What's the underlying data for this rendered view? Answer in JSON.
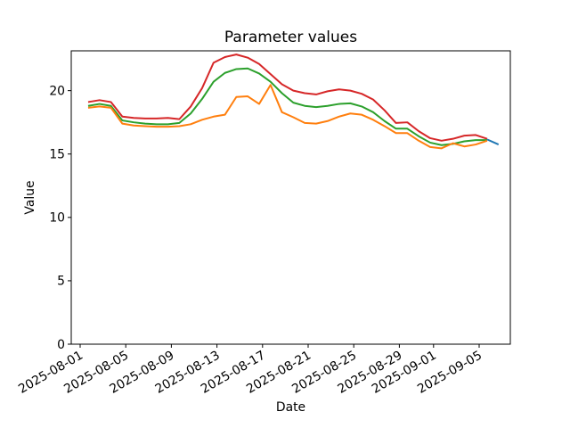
{
  "chart_data": {
    "type": "line",
    "title": "Parameter values",
    "xlabel": "Date",
    "ylabel": "Value",
    "ylim": [
      0,
      23.14
    ],
    "yticks": [
      0,
      5,
      10,
      15,
      20
    ],
    "xtick_labels": [
      "2025-08-01",
      "2025-08-05",
      "2025-08-09",
      "2025-08-13",
      "2025-08-17",
      "2025-08-21",
      "2025-08-25",
      "2025-08-29",
      "2025-09-01",
      "2025-09-05"
    ],
    "xtick_rotation_deg": 30,
    "grid": false,
    "legend": null,
    "dates": [
      "2025-08-01",
      "2025-08-02",
      "2025-08-03",
      "2025-08-04",
      "2025-08-05",
      "2025-08-06",
      "2025-08-07",
      "2025-08-08",
      "2025-08-09",
      "2025-08-10",
      "2025-08-11",
      "2025-08-12",
      "2025-08-13",
      "2025-08-14",
      "2025-08-15",
      "2025-08-16",
      "2025-08-17",
      "2025-08-18",
      "2025-08-19",
      "2025-08-20",
      "2025-08-21",
      "2025-08-22",
      "2025-08-23",
      "2025-08-24",
      "2025-08-25",
      "2025-08-26",
      "2025-08-27",
      "2025-08-28",
      "2025-08-29",
      "2025-08-30",
      "2025-08-31",
      "2025-09-01",
      "2025-09-02",
      "2025-09-03",
      "2025-09-04",
      "2025-09-05"
    ],
    "series": [
      {
        "name": "red",
        "color": "#d62728",
        "values": [
          19.1,
          19.25,
          19.1,
          17.95,
          17.85,
          17.8,
          17.8,
          17.85,
          17.75,
          18.75,
          20.2,
          22.2,
          22.65,
          22.85,
          22.6,
          22.1,
          21.3,
          20.5,
          20.0,
          19.8,
          19.7,
          19.95,
          20.1,
          20.0,
          19.75,
          19.3,
          18.45,
          17.45,
          17.5,
          16.8,
          16.25,
          16.05,
          16.2,
          16.45,
          16.5,
          16.2
        ]
      },
      {
        "name": "green",
        "color": "#2ca02c",
        "values": [
          18.8,
          18.95,
          18.8,
          17.65,
          17.5,
          17.4,
          17.35,
          17.35,
          17.45,
          18.2,
          19.35,
          20.7,
          21.4,
          21.7,
          21.75,
          21.35,
          20.7,
          19.8,
          19.05,
          18.8,
          18.7,
          18.8,
          18.95,
          19.0,
          18.75,
          18.3,
          17.6,
          17.0,
          17.0,
          16.4,
          15.9,
          15.7,
          15.8,
          16.0,
          16.1,
          16.1
        ]
      },
      {
        "name": "orange",
        "color": "#ff7f0e",
        "values": [
          18.65,
          18.75,
          18.65,
          17.4,
          17.25,
          17.2,
          17.15,
          17.15,
          17.2,
          17.35,
          17.7,
          17.95,
          18.1,
          19.5,
          19.55,
          18.95,
          20.45,
          18.3,
          17.9,
          17.45,
          17.4,
          17.6,
          17.95,
          18.2,
          18.1,
          17.7,
          17.2,
          16.65,
          16.65,
          16.05,
          15.55,
          15.45,
          15.85,
          15.6,
          15.75,
          16.05
        ]
      },
      {
        "name": "blue",
        "color": "#1f77b4",
        "dates": [
          "2025-09-05",
          "2025-09-06"
        ],
        "values": [
          16.15,
          15.75
        ]
      }
    ]
  }
}
